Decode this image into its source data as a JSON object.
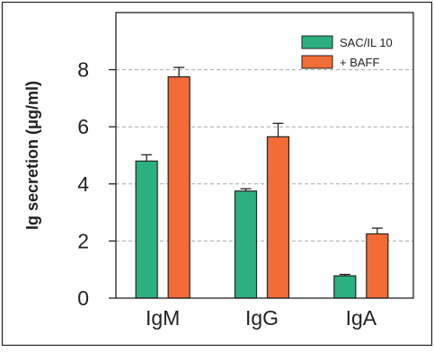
{
  "chart_data": {
    "type": "bar",
    "categories": [
      "IgM",
      "IgG",
      "IgA"
    ],
    "series": [
      {
        "name": "SAC/IL 10",
        "color": "#2db07f",
        "values": [
          4.8,
          3.75,
          0.78
        ],
        "errors": [
          0.22,
          0.08,
          0.05
        ]
      },
      {
        "name": "+ BAFF",
        "color": "#f26c36",
        "values": [
          7.75,
          5.65,
          2.25
        ],
        "errors": [
          0.33,
          0.47,
          0.2
        ]
      }
    ],
    "ylabel": "Ig secretion (μg/ml)",
    "xlabel": "",
    "ylim": [
      0,
      10
    ],
    "yticks": [
      "0",
      "2",
      "4",
      "6",
      "8"
    ],
    "grid": "dashed horizontal at major ticks",
    "legend_position": "top-right"
  }
}
